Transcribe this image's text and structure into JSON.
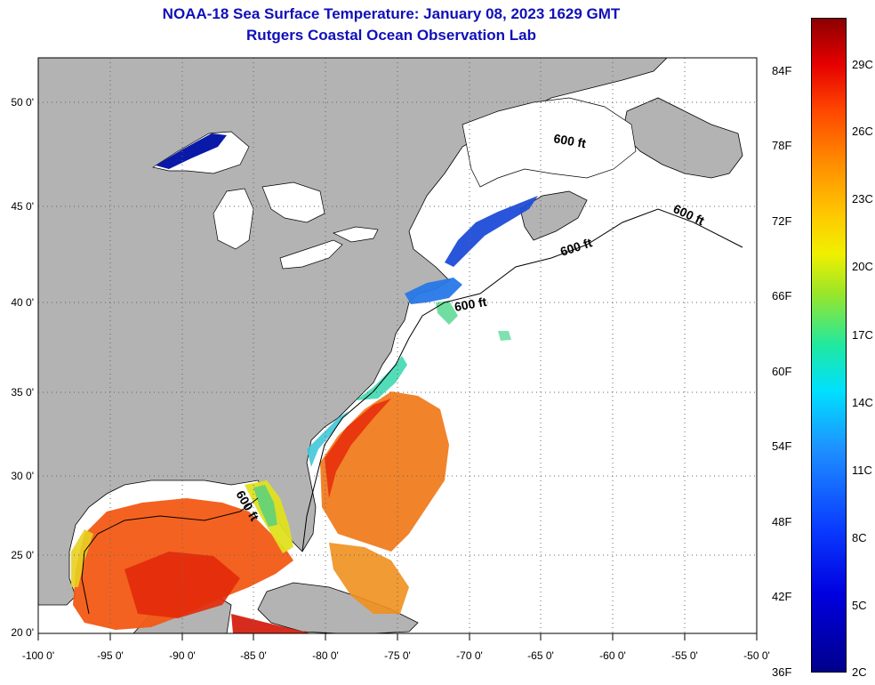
{
  "title": {
    "line1": "NOAA-18 Sea Surface Temperature:  January 08, 2023 1629 GMT",
    "line2": "Rutgers Coastal Ocean Observation Lab"
  },
  "axes": {
    "lat_labels": [
      "50 0'",
      "45 0'",
      "40 0'",
      "35 0'",
      "30 0'",
      "25 0'",
      "20 0'"
    ],
    "lon_labels": [
      "-100 0'",
      "-95 0'",
      "-90 0'",
      "-85 0'",
      "-80 0'",
      "-75 0'",
      "-70 0'",
      "-65 0'",
      "-60 0'",
      "-55 0'",
      "-50 0'"
    ]
  },
  "colorbar": {
    "fahrenheit": [
      "84F",
      "78F",
      "72F",
      "66F",
      "60F",
      "54F",
      "48F",
      "42F",
      "36F"
    ],
    "celsius": [
      "29C",
      "26C",
      "23C",
      "20C",
      "17C",
      "14C",
      "11C",
      "8C",
      "5C",
      "2C"
    ]
  },
  "isobath_labels": [
    "600 ft",
    "600 ft",
    "600 ft",
    "600 ft",
    "600 ft"
  ],
  "colors": {
    "land": "#b3b3b3",
    "ocean_nodata": "#ffffff",
    "title": "#1010b8"
  }
}
